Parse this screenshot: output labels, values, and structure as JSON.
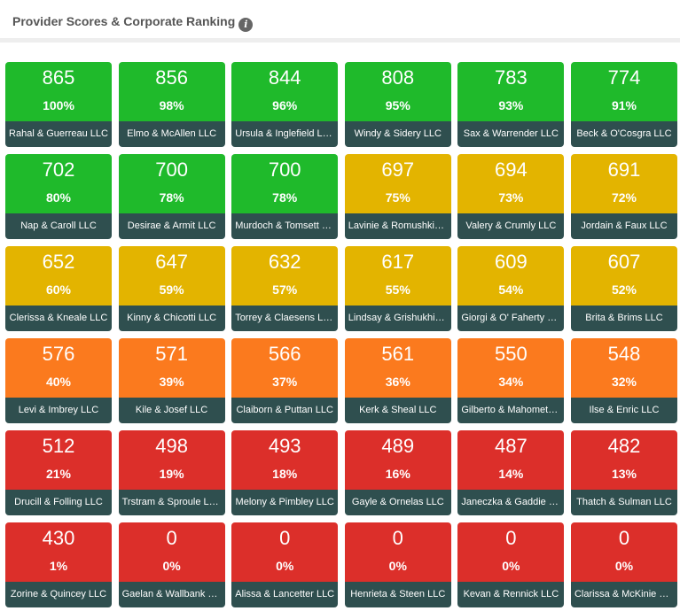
{
  "header": {
    "title": "Provider Scores & Corporate Ranking",
    "info_icon": "i"
  },
  "colors": {
    "green": "#1fba2b",
    "yellow": "#e3b400",
    "orange": "#fb7a1e",
    "red": "#dc2f2a",
    "label_bg": "#2f4f4f"
  },
  "providers": [
    {
      "score": "865",
      "percent": "100%",
      "name": "Rahal & Guerreau LLC",
      "tier": "green"
    },
    {
      "score": "856",
      "percent": "98%",
      "name": "Elmo & McAllen LLC",
      "tier": "green"
    },
    {
      "score": "844",
      "percent": "96%",
      "name": "Ursula & Inglefield LLC",
      "tier": "green"
    },
    {
      "score": "808",
      "percent": "95%",
      "name": "Windy & Sidery LLC",
      "tier": "green"
    },
    {
      "score": "783",
      "percent": "93%",
      "name": "Sax & Warrender LLC",
      "tier": "green"
    },
    {
      "score": "774",
      "percent": "91%",
      "name": "Beck & O'Cosgra LLC",
      "tier": "green"
    },
    {
      "score": "702",
      "percent": "80%",
      "name": "Nap & Caroll LLC",
      "tier": "green"
    },
    {
      "score": "700",
      "percent": "78%",
      "name": "Desirae & Armit LLC",
      "tier": "green"
    },
    {
      "score": "700",
      "percent": "78%",
      "name": "Murdoch & Tomsett LLC",
      "tier": "green"
    },
    {
      "score": "697",
      "percent": "75%",
      "name": "Lavinie & Romushkin LLC",
      "tier": "yellow"
    },
    {
      "score": "694",
      "percent": "73%",
      "name": "Valery & Crumly LLC",
      "tier": "yellow"
    },
    {
      "score": "691",
      "percent": "72%",
      "name": "Jordain & Faux LLC",
      "tier": "yellow"
    },
    {
      "score": "652",
      "percent": "60%",
      "name": "Clerissa & Kneale LLC",
      "tier": "yellow"
    },
    {
      "score": "647",
      "percent": "59%",
      "name": "Kinny & Chicotti LLC",
      "tier": "yellow"
    },
    {
      "score": "632",
      "percent": "57%",
      "name": "Torrey & Claesens LLC",
      "tier": "yellow"
    },
    {
      "score": "617",
      "percent": "55%",
      "name": "Lindsay & Grishukhin LLC",
      "tier": "yellow"
    },
    {
      "score": "609",
      "percent": "54%",
      "name": "Giorgi & O' Faherty LLC",
      "tier": "yellow"
    },
    {
      "score": "607",
      "percent": "52%",
      "name": "Brita & Brims LLC",
      "tier": "yellow"
    },
    {
      "score": "576",
      "percent": "40%",
      "name": "Levi & Imbrey LLC",
      "tier": "orange"
    },
    {
      "score": "571",
      "percent": "39%",
      "name": "Kile & Josef LLC",
      "tier": "orange"
    },
    {
      "score": "566",
      "percent": "37%",
      "name": "Claiborn & Puttan LLC",
      "tier": "orange"
    },
    {
      "score": "561",
      "percent": "36%",
      "name": "Kerk & Sheal LLC",
      "tier": "orange"
    },
    {
      "score": "550",
      "percent": "34%",
      "name": "Gilberto & Mahometo LLC",
      "tier": "orange"
    },
    {
      "score": "548",
      "percent": "32%",
      "name": "Ilse & Enric LLC",
      "tier": "orange"
    },
    {
      "score": "512",
      "percent": "21%",
      "name": "Drucill & Folling LLC",
      "tier": "red"
    },
    {
      "score": "498",
      "percent": "19%",
      "name": "Trstram & Sproule LLC",
      "tier": "red"
    },
    {
      "score": "493",
      "percent": "18%",
      "name": "Melony & Pimbley LLC",
      "tier": "red"
    },
    {
      "score": "489",
      "percent": "16%",
      "name": "Gayle & Ornelas LLC",
      "tier": "red"
    },
    {
      "score": "487",
      "percent": "14%",
      "name": "Janeczka & Gaddie LLC",
      "tier": "red"
    },
    {
      "score": "482",
      "percent": "13%",
      "name": "Thatch & Sulman LLC",
      "tier": "red"
    },
    {
      "score": "430",
      "percent": "1%",
      "name": "Zorine & Quincey LLC",
      "tier": "red"
    },
    {
      "score": "0",
      "percent": "0%",
      "name": "Gaelan & Wallbank LLC",
      "tier": "red"
    },
    {
      "score": "0",
      "percent": "0%",
      "name": "Alissa & Lancetter LLC",
      "tier": "red"
    },
    {
      "score": "0",
      "percent": "0%",
      "name": "Henrieta & Steen LLC",
      "tier": "red"
    },
    {
      "score": "0",
      "percent": "0%",
      "name": "Kevan & Rennick LLC",
      "tier": "red"
    },
    {
      "score": "0",
      "percent": "0%",
      "name": "Clarissa & McKinie LLC",
      "tier": "red"
    }
  ]
}
